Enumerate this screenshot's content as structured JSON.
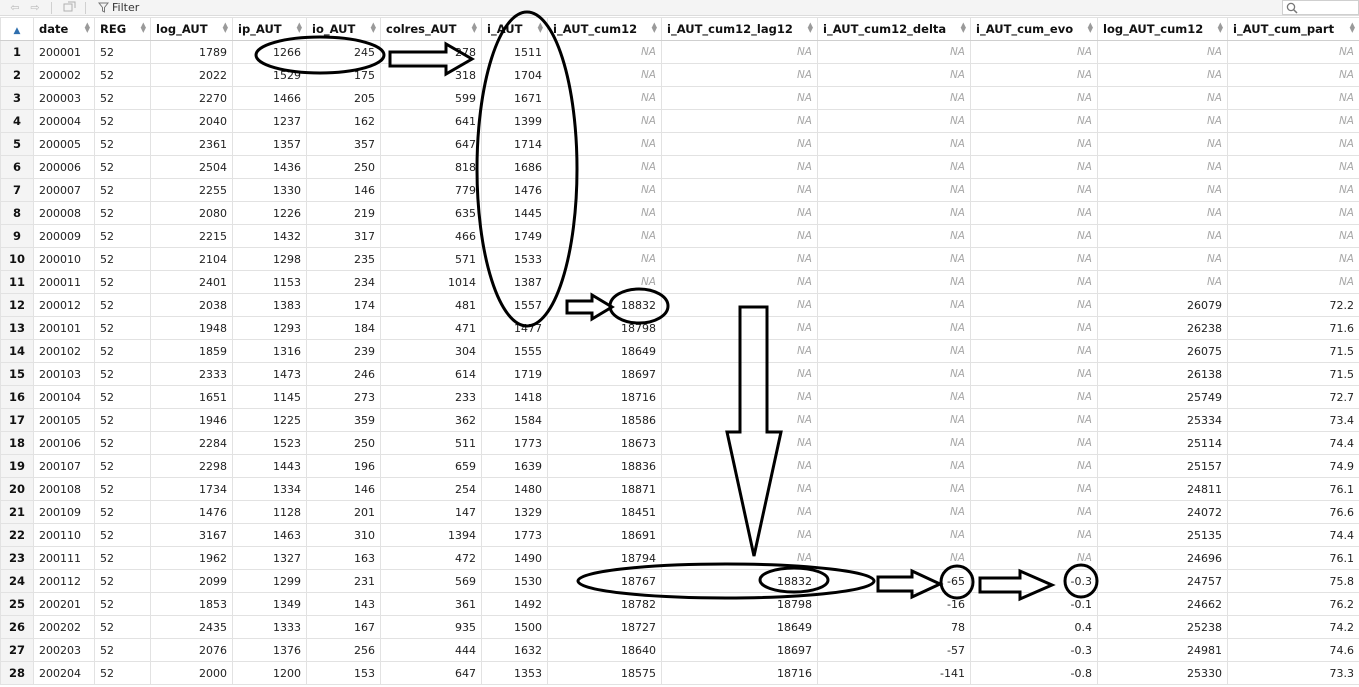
{
  "toolbar": {
    "filter_label": "Filter",
    "search_placeholder": "",
    "icons": [
      "back-arrow-icon",
      "forward-arrow-icon",
      "popout-icon",
      "filter-icon",
      "search-icon"
    ]
  },
  "table": {
    "columns": [
      "date",
      "REG",
      "log_AUT",
      "ip_AUT",
      "io_AUT",
      "colres_AUT",
      "i_AUT",
      "i_AUT_cum12",
      "i_AUT_cum12_lag12",
      "i_AUT_cum12_delta",
      "i_AUT_cum_evo",
      "log_AUT_cum12",
      "i_AUT_cum_part"
    ],
    "rows": [
      [
        "1",
        "200001",
        "52",
        "1789",
        "1266",
        "245",
        "278",
        "1511",
        "NA",
        "NA",
        "NA",
        "NA",
        "NA",
        "NA"
      ],
      [
        "2",
        "200002",
        "52",
        "2022",
        "1529",
        "175",
        "318",
        "1704",
        "NA",
        "NA",
        "NA",
        "NA",
        "NA",
        "NA"
      ],
      [
        "3",
        "200003",
        "52",
        "2270",
        "1466",
        "205",
        "599",
        "1671",
        "NA",
        "NA",
        "NA",
        "NA",
        "NA",
        "NA"
      ],
      [
        "4",
        "200004",
        "52",
        "2040",
        "1237",
        "162",
        "641",
        "1399",
        "NA",
        "NA",
        "NA",
        "NA",
        "NA",
        "NA"
      ],
      [
        "5",
        "200005",
        "52",
        "2361",
        "1357",
        "357",
        "647",
        "1714",
        "NA",
        "NA",
        "NA",
        "NA",
        "NA",
        "NA"
      ],
      [
        "6",
        "200006",
        "52",
        "2504",
        "1436",
        "250",
        "818",
        "1686",
        "NA",
        "NA",
        "NA",
        "NA",
        "NA",
        "NA"
      ],
      [
        "7",
        "200007",
        "52",
        "2255",
        "1330",
        "146",
        "779",
        "1476",
        "NA",
        "NA",
        "NA",
        "NA",
        "NA",
        "NA"
      ],
      [
        "8",
        "200008",
        "52",
        "2080",
        "1226",
        "219",
        "635",
        "1445",
        "NA",
        "NA",
        "NA",
        "NA",
        "NA",
        "NA"
      ],
      [
        "9",
        "200009",
        "52",
        "2215",
        "1432",
        "317",
        "466",
        "1749",
        "NA",
        "NA",
        "NA",
        "NA",
        "NA",
        "NA"
      ],
      [
        "10",
        "200010",
        "52",
        "2104",
        "1298",
        "235",
        "571",
        "1533",
        "NA",
        "NA",
        "NA",
        "NA",
        "NA",
        "NA"
      ],
      [
        "11",
        "200011",
        "52",
        "2401",
        "1153",
        "234",
        "1014",
        "1387",
        "NA",
        "NA",
        "NA",
        "NA",
        "NA",
        "NA"
      ],
      [
        "12",
        "200012",
        "52",
        "2038",
        "1383",
        "174",
        "481",
        "1557",
        "18832",
        "NA",
        "NA",
        "NA",
        "26079",
        "72.2"
      ],
      [
        "13",
        "200101",
        "52",
        "1948",
        "1293",
        "184",
        "471",
        "1477",
        "18798",
        "NA",
        "NA",
        "NA",
        "26238",
        "71.6"
      ],
      [
        "14",
        "200102",
        "52",
        "1859",
        "1316",
        "239",
        "304",
        "1555",
        "18649",
        "NA",
        "NA",
        "NA",
        "26075",
        "71.5"
      ],
      [
        "15",
        "200103",
        "52",
        "2333",
        "1473",
        "246",
        "614",
        "1719",
        "18697",
        "NA",
        "NA",
        "NA",
        "26138",
        "71.5"
      ],
      [
        "16",
        "200104",
        "52",
        "1651",
        "1145",
        "273",
        "233",
        "1418",
        "18716",
        "NA",
        "NA",
        "NA",
        "25749",
        "72.7"
      ],
      [
        "17",
        "200105",
        "52",
        "1946",
        "1225",
        "359",
        "362",
        "1584",
        "18586",
        "NA",
        "NA",
        "NA",
        "25334",
        "73.4"
      ],
      [
        "18",
        "200106",
        "52",
        "2284",
        "1523",
        "250",
        "511",
        "1773",
        "18673",
        "NA",
        "NA",
        "NA",
        "25114",
        "74.4"
      ],
      [
        "19",
        "200107",
        "52",
        "2298",
        "1443",
        "196",
        "659",
        "1639",
        "18836",
        "NA",
        "NA",
        "NA",
        "25157",
        "74.9"
      ],
      [
        "20",
        "200108",
        "52",
        "1734",
        "1334",
        "146",
        "254",
        "1480",
        "18871",
        "NA",
        "NA",
        "NA",
        "24811",
        "76.1"
      ],
      [
        "21",
        "200109",
        "52",
        "1476",
        "1128",
        "201",
        "147",
        "1329",
        "18451",
        "NA",
        "NA",
        "NA",
        "24072",
        "76.6"
      ],
      [
        "22",
        "200110",
        "52",
        "3167",
        "1463",
        "310",
        "1394",
        "1773",
        "18691",
        "NA",
        "NA",
        "NA",
        "25135",
        "74.4"
      ],
      [
        "23",
        "200111",
        "52",
        "1962",
        "1327",
        "163",
        "472",
        "1490",
        "18794",
        "NA",
        "NA",
        "NA",
        "24696",
        "76.1"
      ],
      [
        "24",
        "200112",
        "52",
        "2099",
        "1299",
        "231",
        "569",
        "1530",
        "18767",
        "18832",
        "-65",
        "-0.3",
        "24757",
        "75.8"
      ],
      [
        "25",
        "200201",
        "52",
        "1853",
        "1349",
        "143",
        "361",
        "1492",
        "18782",
        "18798",
        "-16",
        "-0.1",
        "24662",
        "76.2"
      ],
      [
        "26",
        "200202",
        "52",
        "2435",
        "1333",
        "167",
        "935",
        "1500",
        "18727",
        "18649",
        "78",
        "0.4",
        "25238",
        "74.2"
      ],
      [
        "27",
        "200203",
        "52",
        "2076",
        "1376",
        "256",
        "444",
        "1632",
        "18640",
        "18697",
        "-57",
        "-0.3",
        "24981",
        "74.6"
      ],
      [
        "28",
        "200204",
        "52",
        "2000",
        "1200",
        "153",
        "647",
        "1353",
        "18575",
        "18716",
        "-141",
        "-0.8",
        "25330",
        "73.3"
      ]
    ]
  },
  "colors": {
    "na_text": "#a7a7a7",
    "grid_line": "#e2e2e2",
    "annotation_stroke": "#000000",
    "sort_active": "#2f6fae"
  }
}
